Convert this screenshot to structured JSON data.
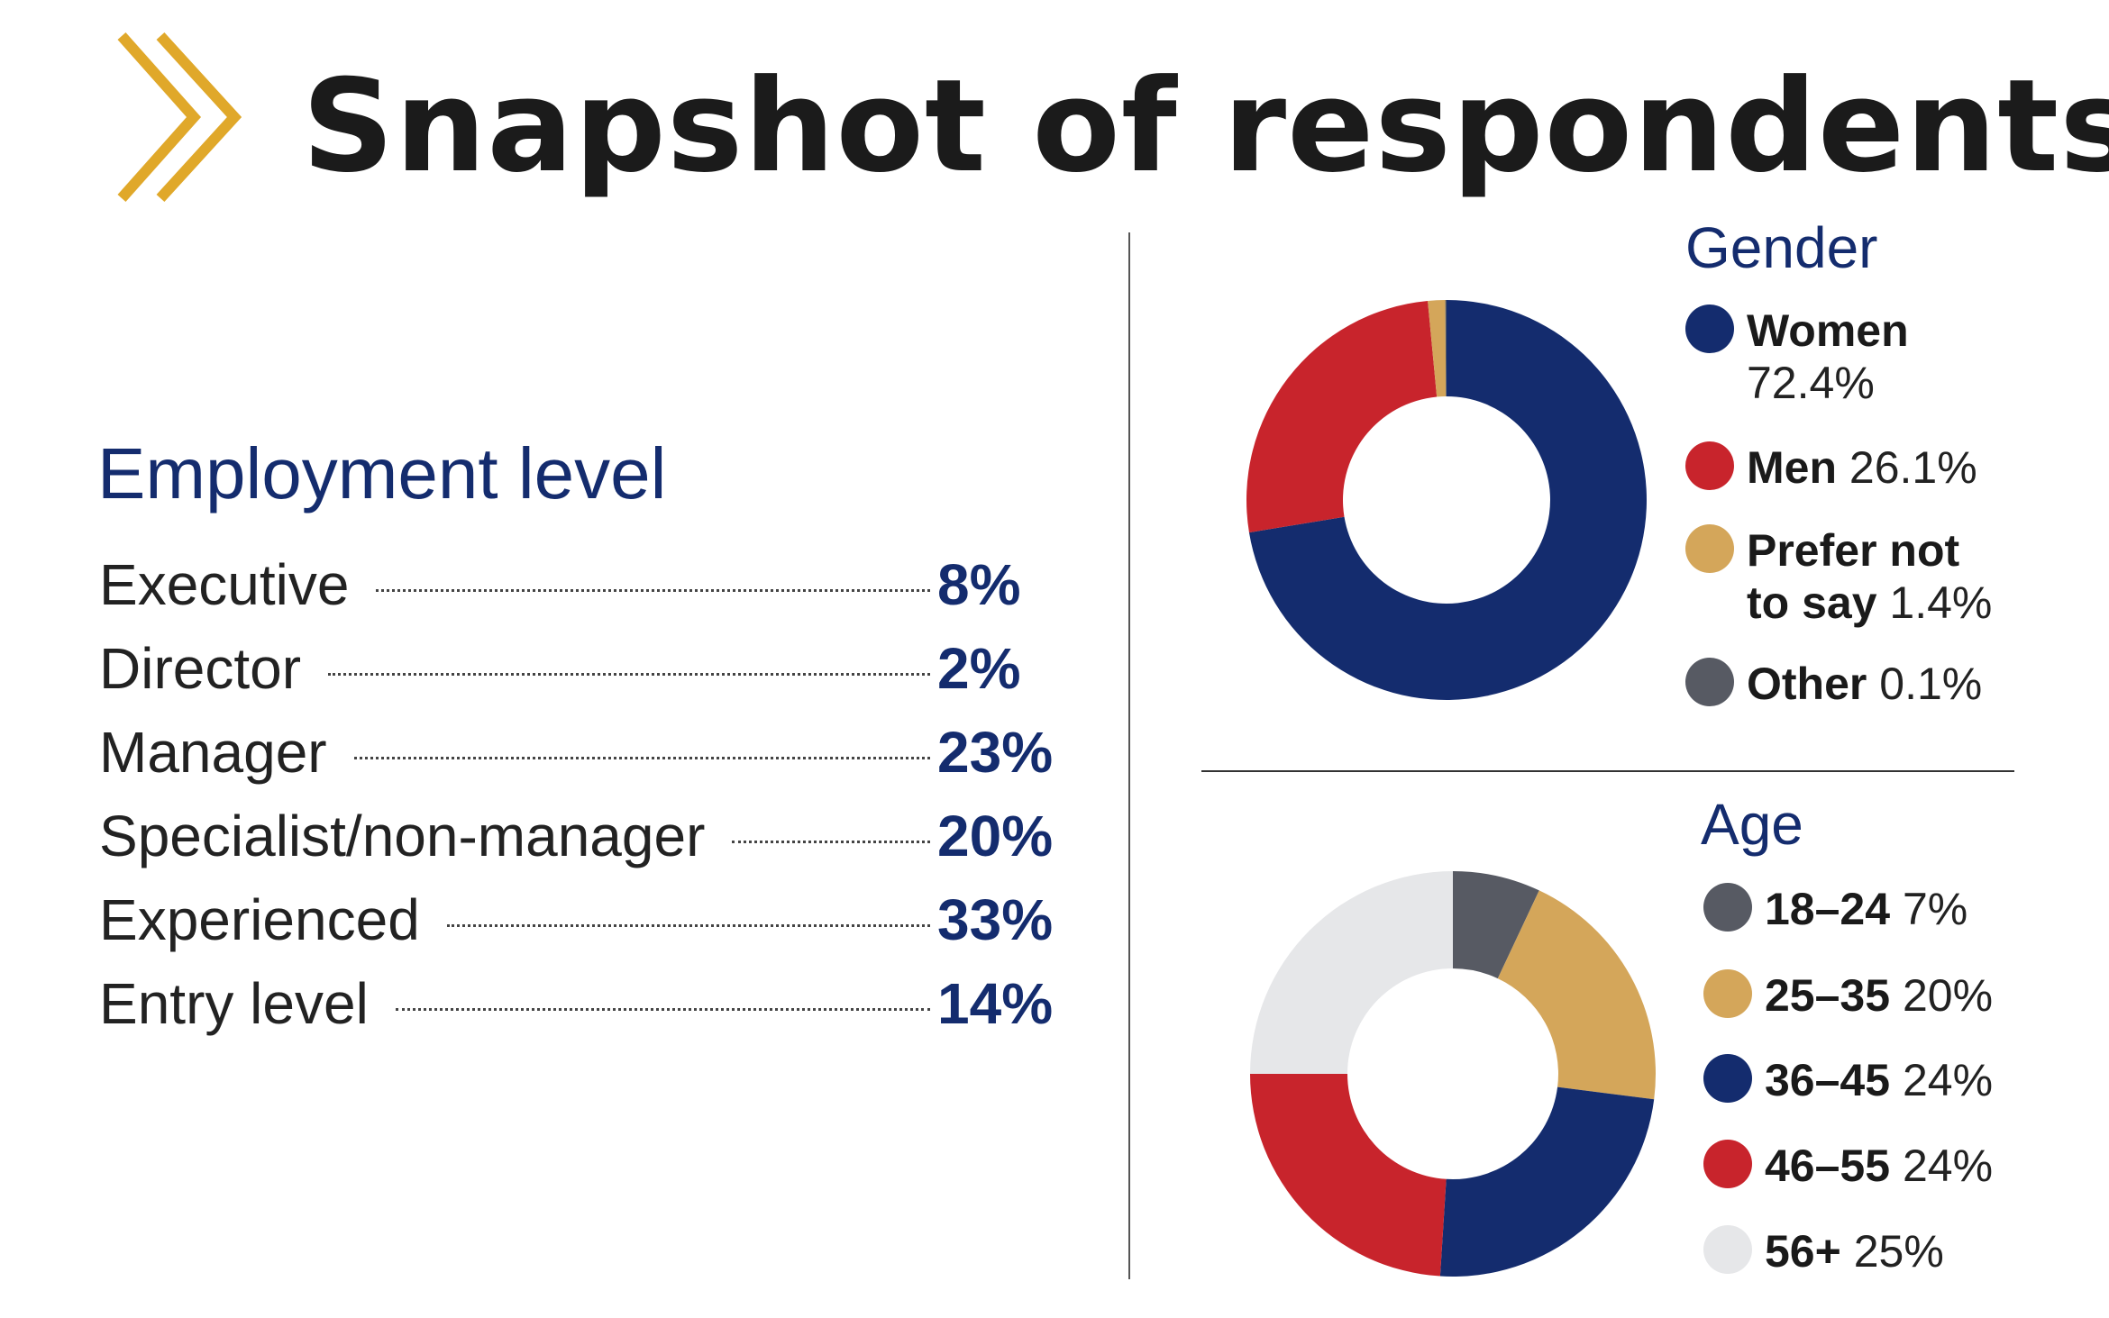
{
  "title": "Snapshot of respondents",
  "colors": {
    "navy": "#142c6e",
    "red": "#c8242c",
    "gold": "#d4a65a",
    "grey": "#575a63",
    "light": "#e6e7e9",
    "chevron": "#e0a82a"
  },
  "chart_data": [
    {
      "type": "table",
      "title": "Employment level",
      "rows": [
        {
          "label": "Executive",
          "value": "8%"
        },
        {
          "label": "Director",
          "value": "2%"
        },
        {
          "label": "Manager",
          "value": "23%"
        },
        {
          "label": "Specialist/non-manager",
          "value": "20%"
        },
        {
          "label": "Experienced",
          "value": "33%"
        },
        {
          "label": "Entry level",
          "value": "14%"
        }
      ]
    },
    {
      "type": "pie",
      "title": "Gender",
      "slices": [
        {
          "label": "Women",
          "value": 72.4,
          "text": "72.4%",
          "color": "#142c6e"
        },
        {
          "label": "Men",
          "value": 26.1,
          "text": "26.1%",
          "color": "#c8242c"
        },
        {
          "label": "Prefer not to say",
          "label_l1": "Prefer not",
          "label_l2": "to say",
          "value": 1.4,
          "text": "1.4%",
          "color": "#d4a65a"
        },
        {
          "label": "Other",
          "value": 0.1,
          "text": "0.1%",
          "color": "#575a63"
        }
      ]
    },
    {
      "type": "pie",
      "title": "Age",
      "slices": [
        {
          "label": "18–24",
          "value": 7,
          "text": "7%",
          "color": "#575a63"
        },
        {
          "label": "25–35",
          "value": 20,
          "text": "20%",
          "color": "#d4a65a"
        },
        {
          "label": "36–45",
          "value": 24,
          "text": "24%",
          "color": "#142c6e"
        },
        {
          "label": "46–55",
          "value": 24,
          "text": "24%",
          "color": "#c8242c"
        },
        {
          "label": "56+",
          "value": 25,
          "text": "25%",
          "color": "#e6e7e9"
        }
      ]
    }
  ]
}
